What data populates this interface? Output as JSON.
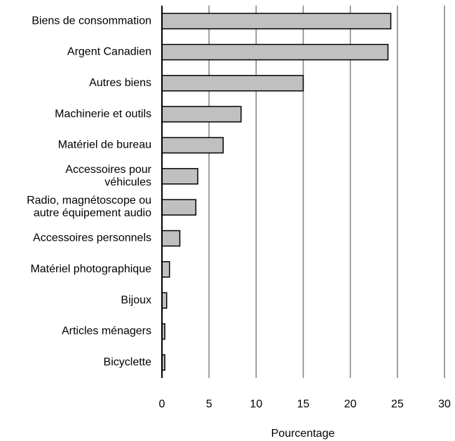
{
  "chart_data": {
    "type": "bar",
    "orientation": "horizontal",
    "categories": [
      "Biens de consommation",
      "Argent Canadien",
      "Autres biens",
      "Machinerie et outils",
      "Matériel de bureau",
      "Accessoires pour\nvéhicules",
      "Radio, magnétoscope ou\nautre équipement audio",
      "Accessoires personnels",
      "Matériel photographique",
      "Bijoux",
      "Articles ménagers",
      "Bicyclette"
    ],
    "values": [
      24.3,
      24.0,
      15.0,
      8.4,
      6.5,
      3.8,
      3.6,
      1.9,
      0.8,
      0.5,
      0.3,
      0.3
    ],
    "color": "#c0c0c0",
    "xlabel": "Pourcentage",
    "xlim": [
      0,
      30
    ],
    "xticks": [
      0,
      5,
      10,
      15,
      20,
      25,
      30
    ],
    "grid": true
  }
}
